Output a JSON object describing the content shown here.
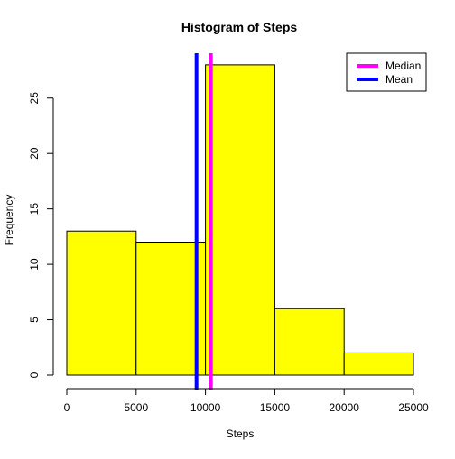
{
  "chart_data": {
    "type": "bar",
    "title": "Histogram of Steps",
    "xlabel": "Steps",
    "ylabel": "Frequency",
    "bins": [
      {
        "from": 0,
        "to": 5000,
        "count": 13
      },
      {
        "from": 5000,
        "to": 10000,
        "count": 12
      },
      {
        "from": 10000,
        "to": 15000,
        "count": 28
      },
      {
        "from": 15000,
        "to": 20000,
        "count": 6
      },
      {
        "from": 20000,
        "to": 25000,
        "count": 2
      }
    ],
    "x_ticks": [
      0,
      5000,
      10000,
      15000,
      20000,
      25000
    ],
    "y_ticks": [
      0,
      5,
      10,
      15,
      20,
      25
    ],
    "xlim": [
      0,
      25000
    ],
    "ylim": [
      0,
      28
    ],
    "bar_color": "#FFFF00",
    "vlines": [
      {
        "name": "Median",
        "value": 10395,
        "color": "#FF00FF"
      },
      {
        "name": "Mean",
        "value": 9354,
        "color": "#0000FF"
      }
    ],
    "legend": {
      "placement": "top-right",
      "entries": [
        {
          "label": "Median",
          "color": "#FF00FF"
        },
        {
          "label": "Mean",
          "color": "#0000FF"
        }
      ]
    },
    "grid": false
  }
}
